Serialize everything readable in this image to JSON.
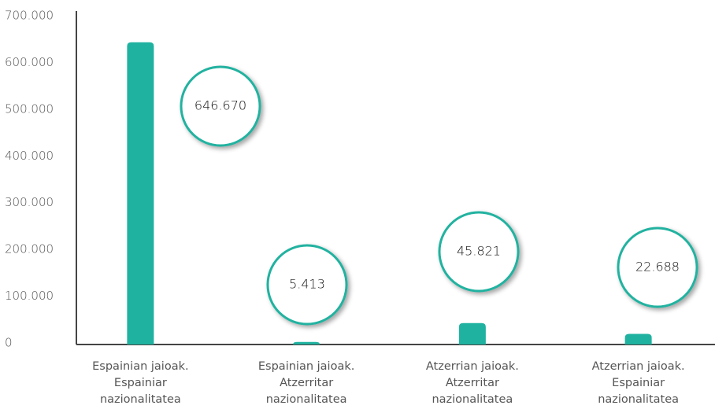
{
  "chart_data": {
    "type": "bar",
    "categories": [
      "Espainian jaioak. Espainiar nazionalitatea",
      "Espainian jaioak. Atzerritar nazionalitatea",
      "Atzerrian jaioak. Atzerritar nazionalitatea",
      "Atzerrian jaioak. Espainiar nazionalitatea"
    ],
    "values": [
      646670,
      5413,
      45821,
      22688
    ],
    "value_labels": [
      "646.670",
      "5.413",
      "45.821",
      "22.688"
    ],
    "color": "#20b2a0",
    "ylim": [
      0,
      700000
    ],
    "yticks": [
      0,
      {
        "value": 100000,
        "label": "100.000"
      },
      {
        "value": 200000,
        "label": "200.000"
      },
      {
        "value": 300000,
        "label": "300.000"
      },
      {
        "value": 400000,
        "label": "400.000"
      },
      {
        "value": 500000,
        "label": "500.000"
      },
      {
        "value": 600000,
        "label": "600.000"
      },
      {
        "value": 700000,
        "label": "700.000"
      }
    ],
    "grid": false
  }
}
